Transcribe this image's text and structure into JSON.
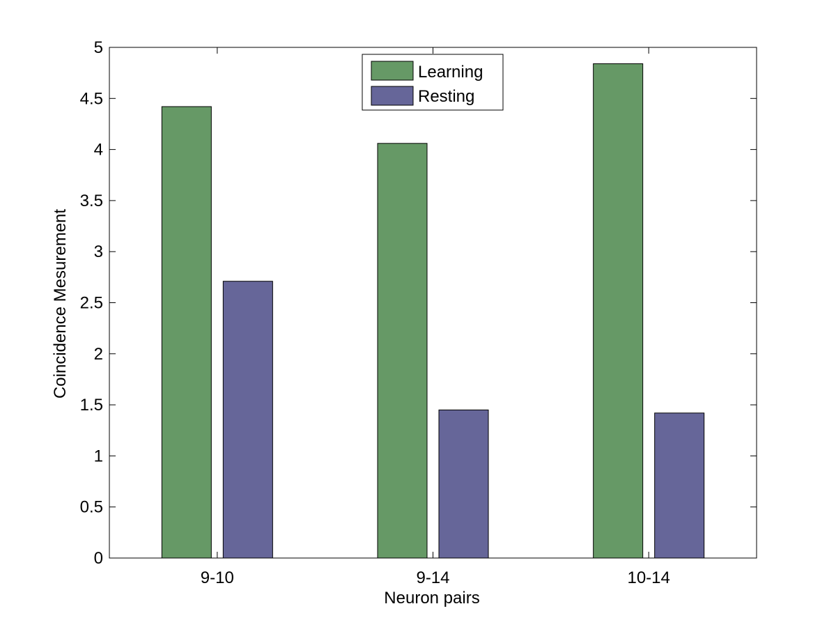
{
  "chart_data": {
    "type": "bar",
    "title": "",
    "xlabel": "Neuron pairs",
    "ylabel": "Coincidence Mesurement",
    "categories": [
      "9-10",
      "9-14",
      "10-14"
    ],
    "series": [
      {
        "name": "Learning",
        "color": "#669966",
        "values": [
          4.42,
          4.06,
          4.84
        ]
      },
      {
        "name": "Resting",
        "color": "#666699",
        "values": [
          2.71,
          1.45,
          1.42
        ]
      }
    ],
    "ylim": [
      0,
      5
    ],
    "yticks": [
      "0",
      "0.5",
      "1",
      "1.5",
      "2",
      "2.5",
      "3",
      "3.5",
      "4",
      "4.5",
      "5"
    ],
    "grid": false,
    "legend_position": "top-center"
  }
}
